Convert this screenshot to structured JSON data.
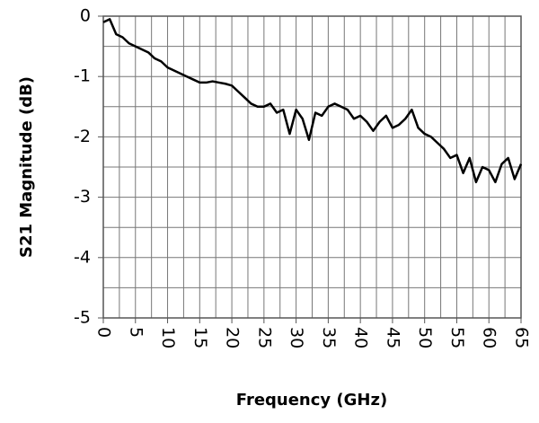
{
  "chart_data": {
    "type": "line",
    "x_label": "Frequency (GHz)",
    "y_label": "S21 Magnitude (dB)",
    "xlim": [
      0,
      65
    ],
    "ylim": [
      -5,
      0
    ],
    "xticks": [
      0,
      5,
      10,
      15,
      20,
      25,
      30,
      35,
      40,
      45,
      50,
      55,
      60,
      65
    ],
    "yticks": [
      0,
      -1,
      -2,
      -3,
      -4,
      -5
    ],
    "xgrid": [
      0,
      2.5,
      5,
      7.5,
      10,
      12.5,
      15,
      17.5,
      20,
      22.5,
      25,
      27.5,
      30,
      32.5,
      35,
      37.5,
      40,
      42.5,
      45,
      47.5,
      50,
      52.5,
      55,
      57.5,
      60,
      62.5,
      65
    ],
    "ygrid": [
      0,
      -0.5,
      -1,
      -1.5,
      -2,
      -2.5,
      -3,
      -3.5,
      -4,
      -4.5,
      -5
    ],
    "grid": true,
    "series": [
      {
        "color": "#000000",
        "x": [
          0,
          1,
          2,
          3,
          4,
          5,
          6,
          7,
          8,
          9,
          10,
          11,
          12,
          13,
          14,
          15,
          16,
          17,
          18,
          19,
          20,
          21,
          22,
          23,
          24,
          25,
          26,
          27,
          28,
          29,
          30,
          31,
          32,
          33,
          34,
          35,
          36,
          37,
          38,
          39,
          40,
          41,
          42,
          43,
          44,
          45,
          46,
          47,
          48,
          49,
          50,
          51,
          52,
          53,
          54,
          55,
          56,
          57,
          58,
          59,
          60,
          61,
          62,
          63,
          64,
          65
        ],
        "values": [
          -0.1,
          -0.05,
          -0.3,
          -0.35,
          -0.45,
          -0.5,
          -0.55,
          -0.6,
          -0.7,
          -0.75,
          -0.85,
          -0.9,
          -0.95,
          -1.0,
          -1.05,
          -1.1,
          -1.1,
          -1.08,
          -1.1,
          -1.12,
          -1.15,
          -1.25,
          -1.35,
          -1.45,
          -1.5,
          -1.5,
          -1.45,
          -1.6,
          -1.55,
          -1.95,
          -1.55,
          -1.7,
          -2.05,
          -1.6,
          -1.65,
          -1.5,
          -1.45,
          -1.5,
          -1.55,
          -1.7,
          -1.65,
          -1.75,
          -1.9,
          -1.75,
          -1.65,
          -1.85,
          -1.8,
          -1.7,
          -1.55,
          -1.85,
          -1.95,
          -2.0,
          -2.1,
          -2.2,
          -2.35,
          -2.3,
          -2.6,
          -2.35,
          -2.75,
          -2.5,
          -2.55,
          -2.75,
          -2.45,
          -2.35,
          -2.7,
          -2.45
        ]
      }
    ]
  }
}
